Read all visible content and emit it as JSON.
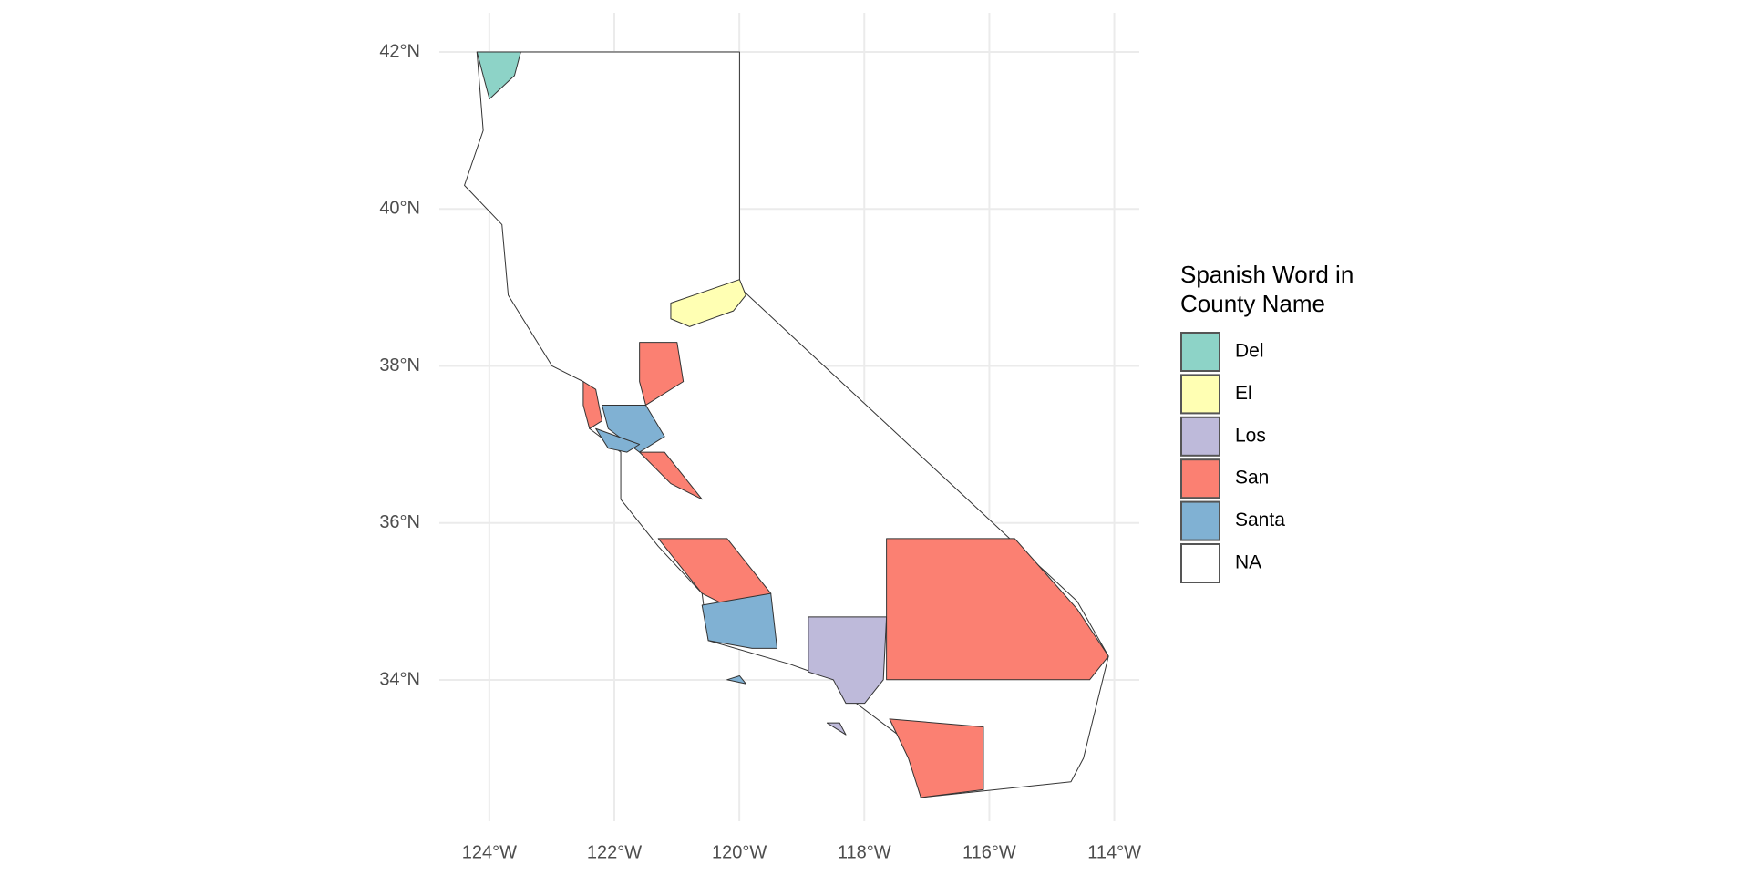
{
  "chart_data": {
    "type": "map",
    "legend_title": [
      "Spanish Word in",
      "County Name"
    ],
    "legend": [
      {
        "name": "Del",
        "color": "#8dd3c7"
      },
      {
        "name": "El",
        "color": "#ffffb3"
      },
      {
        "name": "Los",
        "color": "#bebada"
      },
      {
        "name": "San",
        "color": "#fb8072"
      },
      {
        "name": "Santa",
        "color": "#80b1d3"
      },
      {
        "name": "NA",
        "color": "#ffffff"
      }
    ],
    "xlim": [
      -124.8,
      -113.6
    ],
    "ylim": [
      32.2,
      42.5
    ],
    "xticks": [
      {
        "value": -124,
        "label": "124°W"
      },
      {
        "value": -122,
        "label": "122°W"
      },
      {
        "value": -120,
        "label": "120°W"
      },
      {
        "value": -118,
        "label": "118°W"
      },
      {
        "value": -116,
        "label": "116°W"
      },
      {
        "value": -114,
        "label": "114°W"
      }
    ],
    "yticks": [
      {
        "value": 34,
        "label": "34°N"
      },
      {
        "value": 36,
        "label": "36°N"
      },
      {
        "value": 38,
        "label": "38°N"
      },
      {
        "value": 40,
        "label": "40°N"
      },
      {
        "value": 42,
        "label": "42°N"
      }
    ],
    "grid": true
  }
}
